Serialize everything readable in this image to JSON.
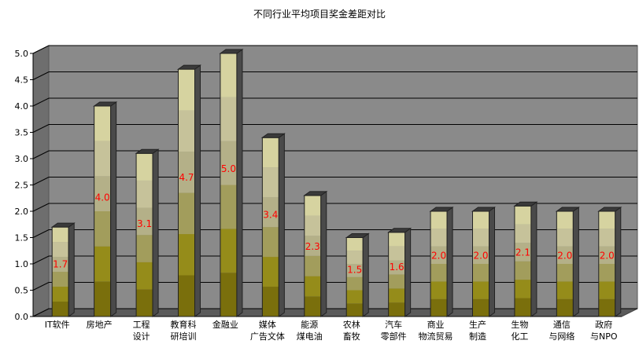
{
  "chart_data": {
    "type": "bar",
    "title": "不同行业平均项目奖金差距对比",
    "xlabel": "",
    "ylabel": "",
    "ylim": [
      0,
      5.0
    ],
    "yticks": [
      "0.0",
      "0.5",
      "1.0",
      "1.5",
      "2.0",
      "2.5",
      "3.0",
      "3.5",
      "4.0",
      "4.5",
      "5.0"
    ],
    "grid": true,
    "legend": "none",
    "categories": [
      [
        "IT软件"
      ],
      [
        "房地产"
      ],
      [
        "工程",
        "设计"
      ],
      [
        "教育科",
        "研培训"
      ],
      [
        "金融业"
      ],
      [
        "媒体",
        "广告文体"
      ],
      [
        "能源",
        "煤电油"
      ],
      [
        "农林",
        "畜牧"
      ],
      [
        "汽车",
        "零部件"
      ],
      [
        "商业",
        "物流贸易"
      ],
      [
        "生产",
        "制造"
      ],
      [
        "生物",
        "化工"
      ],
      [
        "通信",
        "与网络"
      ],
      [
        "政府",
        "与NPO"
      ]
    ],
    "values": [
      1.7,
      4.0,
      3.1,
      4.7,
      5.0,
      3.4,
      2.3,
      1.5,
      1.6,
      2.0,
      2.0,
      2.1,
      2.0,
      2.0
    ],
    "data_labels": [
      "1.7",
      "4.0",
      "3.1",
      "4.7",
      "5.0",
      "3.4",
      "2.3",
      "1.5",
      "1.6",
      "2.0",
      "2.0",
      "2.1",
      "2.0",
      "2.0"
    ],
    "colors": {
      "wall": "#8a8a8a",
      "floor": "#5a5a5a",
      "label": "#ff0000",
      "bands": [
        "#7a6f0c",
        "#958c1a",
        "#a29d5c",
        "#b4b088",
        "#c6c29a",
        "#d6d3a0"
      ]
    }
  }
}
